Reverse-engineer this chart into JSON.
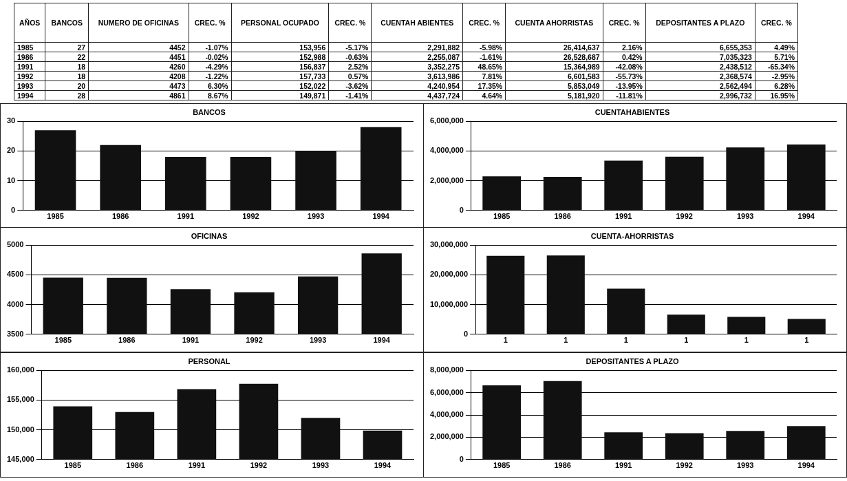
{
  "chart_data": [
    {
      "type": "other",
      "categories": [
        "AÑOS",
        "BANCOS",
        "NUMERO DE OFICINAS",
        "CREC. %",
        "PERSONAL OCUPADO",
        "CREC. %",
        "CUENTAH ABIENTES",
        "CREC. %",
        "CUENTA AHORRISTAS",
        "CREC. %",
        "DEPOSITANTES A PLAZO",
        "CREC. %"
      ],
      "annotations": [
        "1985",
        "27",
        "4452",
        "-1.07%",
        "153,956",
        "-5.17%",
        "2,291,882",
        "-5.98%",
        "26,414,637",
        "2.16%",
        "6,655,353",
        "4.49%",
        "1986",
        "22",
        "4451",
        "-0.02%",
        "152,988",
        "-0.63%",
        "2,255,087",
        "-1.61%",
        "26,528,687",
        "0.42%",
        "7,035,323",
        "5.71%",
        "1991",
        "18",
        "4260",
        "-4.29%",
        "156,837",
        "2.52%",
        "3,352,275",
        "48.65%",
        "15,364,989",
        "-42.08%",
        "2,438,512",
        "-65.34%",
        "1992",
        "18",
        "4208",
        "-1.22%",
        "157,733",
        "0.57%",
        "3,613,986",
        "7.81%",
        "6,601,583",
        "-55.73%",
        "2,368,574",
        "-2.95%",
        "1993",
        "20",
        "4473",
        "6.30%",
        "152,022",
        "-3.62%",
        "4,240,954",
        "17.35%",
        "5,853,049",
        "-13.95%",
        "2,562,494",
        "6.28%",
        "1994",
        "28",
        "4861",
        "8.67%",
        "149,871",
        "-1.41%",
        "4,437,724",
        "4.64%",
        "5,181,920",
        "-11.81%",
        "2,996,732",
        "16.95%"
      ]
    },
    {
      "type": "bar",
      "title": "BANCOS",
      "categories": [
        "1985",
        "1986",
        "1991",
        "1992",
        "1993",
        "1994"
      ],
      "values": [
        27,
        22,
        18,
        18,
        20,
        28
      ],
      "color": "#111111",
      "ylim": [
        0,
        30
      ],
      "yticks": [
        0,
        10,
        20,
        30
      ],
      "grid": "y"
    },
    {
      "type": "bar",
      "title": "CUENTAHABIENTES",
      "categories": [
        "1985",
        "1986",
        "1991",
        "1992",
        "1993",
        "1994"
      ],
      "values": [
        2291882,
        2255087,
        3352275,
        3613986,
        4240954,
        4437724
      ],
      "color": "#111111",
      "ylim": [
        0,
        6000000
      ],
      "yticks": [
        {
          "value": 0,
          "label": "0"
        },
        {
          "value": 2000000,
          "label": "2,000,000"
        },
        {
          "value": 4000000,
          "label": "4,000,000"
        },
        {
          "value": 6000000,
          "label": "6,000,000"
        }
      ],
      "grid": "y"
    },
    {
      "type": "bar",
      "title": "OFICINAS",
      "categories": [
        "1985",
        "1986",
        "1991",
        "1992",
        "1993",
        "1994"
      ],
      "values": [
        4452,
        4451,
        4260,
        4208,
        4473,
        4861
      ],
      "color": "#111111",
      "ylim": [
        3500,
        5000
      ],
      "yticks": [
        3500,
        4000,
        4500,
        5000
      ],
      "grid": "y"
    },
    {
      "type": "bar",
      "title": "CUENTA-AHORRISTAS",
      "categories": [
        "1",
        "1",
        "1",
        "1",
        "1",
        "1"
      ],
      "values": [
        26414637,
        26528687,
        15364989,
        6601583,
        5853049,
        5181920
      ],
      "color": "#111111",
      "ylim": [
        0,
        30000000
      ],
      "yticks": [
        {
          "value": 0,
          "label": "0"
        },
        {
          "value": 10000000,
          "label": "10,000,000"
        },
        {
          "value": 20000000,
          "label": "20,000,000"
        },
        {
          "value": 30000000,
          "label": "30,000,000"
        }
      ],
      "grid": "y"
    },
    {
      "type": "bar",
      "title": "PERSONAL",
      "categories": [
        "1985",
        "1986",
        "1991",
        "1992",
        "1993",
        "1994"
      ],
      "values": [
        153956,
        152988,
        156837,
        157733,
        152022,
        149871
      ],
      "color": "#111111",
      "ylim": [
        145000,
        160000
      ],
      "yticks": [
        {
          "value": 145000,
          "label": "145,000"
        },
        {
          "value": 150000,
          "label": "150,000"
        },
        {
          "value": 155000,
          "label": "155,000"
        },
        {
          "value": 160000,
          "label": "160,000"
        }
      ],
      "grid": "y"
    },
    {
      "type": "bar",
      "title": "DEPOSITANTES A PLAZO",
      "categories": [
        "1985",
        "1986",
        "1991",
        "1992",
        "1993",
        "1994"
      ],
      "values": [
        6655353,
        7035323,
        2438512,
        2368574,
        2562494,
        2996732
      ],
      "color": "#111111",
      "ylim": [
        0,
        8000000
      ],
      "yticks": [
        {
          "value": 0,
          "label": "0"
        },
        {
          "value": 2000000,
          "label": "2,000,000"
        },
        {
          "value": 4000000,
          "label": "4,000,000"
        },
        {
          "value": 6000000,
          "label": "6,000,000"
        },
        {
          "value": 8000000,
          "label": "8,000,000"
        }
      ],
      "grid": "y"
    }
  ]
}
